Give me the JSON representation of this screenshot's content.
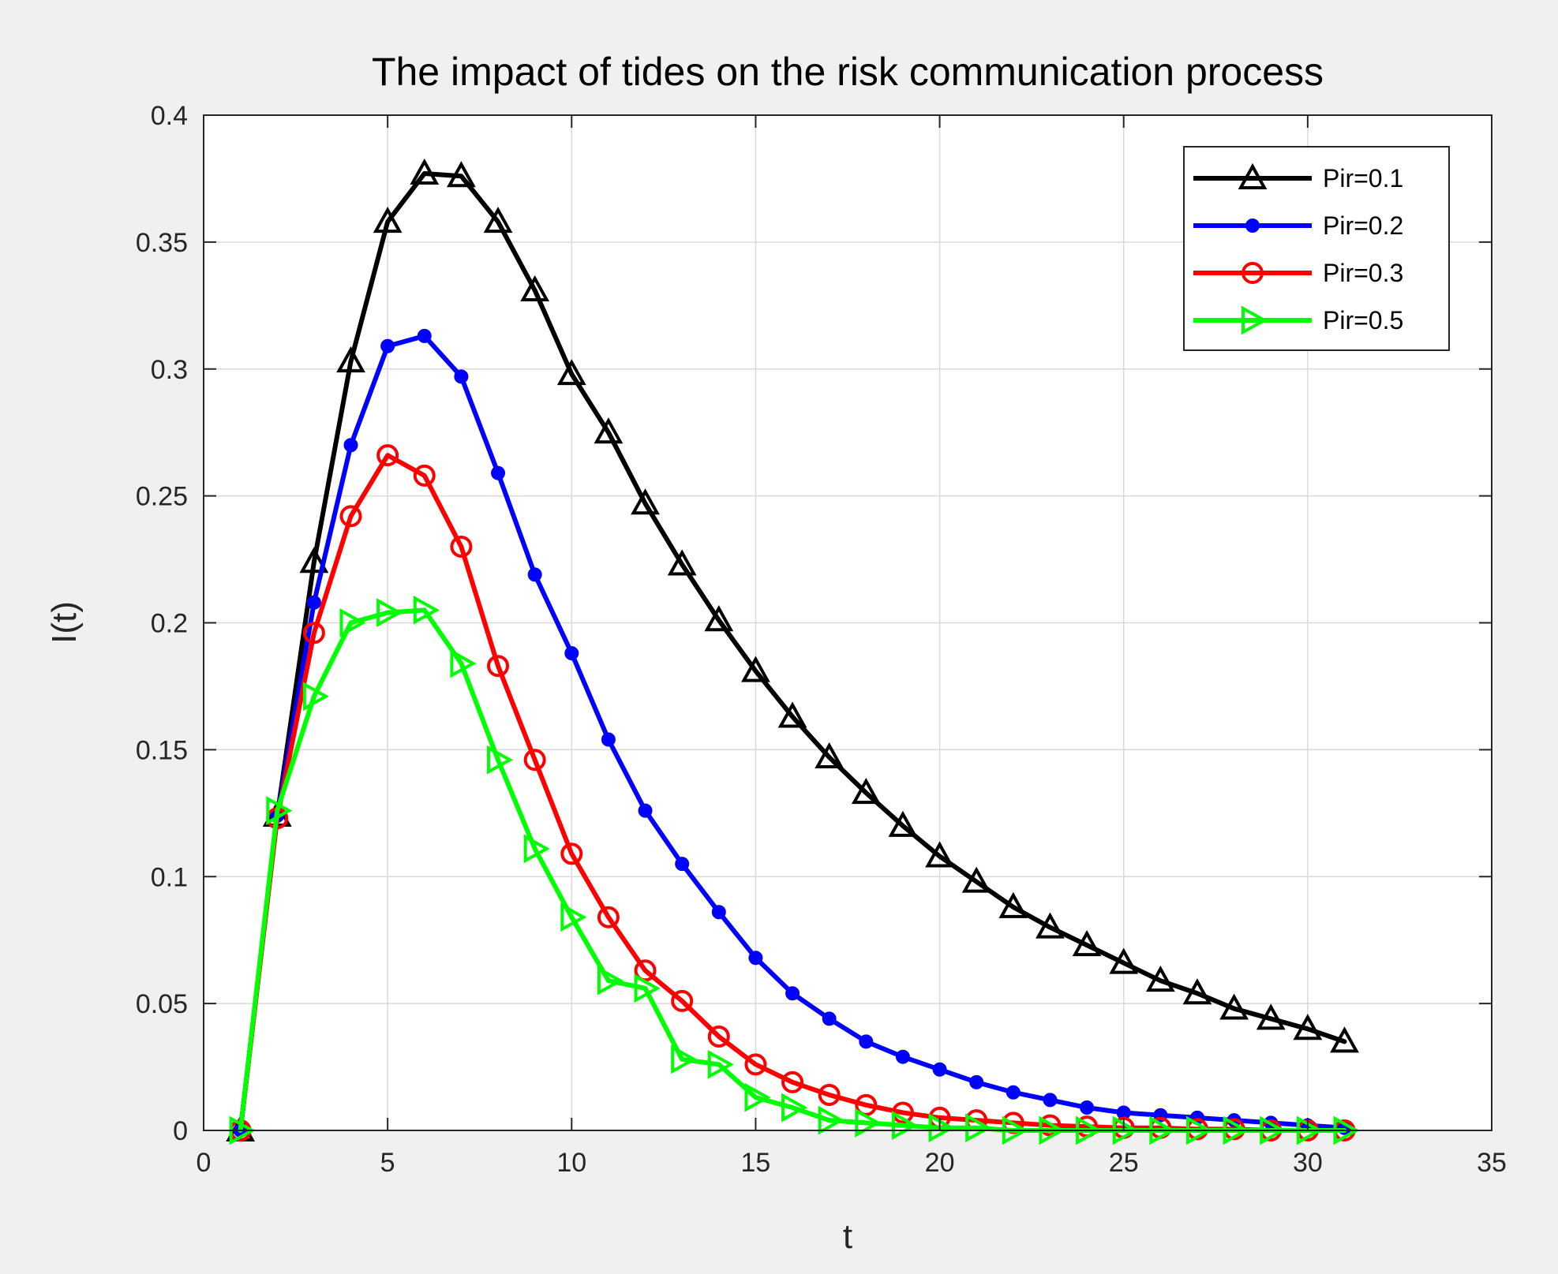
{
  "chart_data": {
    "type": "line",
    "title": "The impact of tides on the risk communication process",
    "xlabel": "t",
    "ylabel": "I(t)",
    "xlim": [
      0,
      35
    ],
    "ylim": [
      0,
      0.4
    ],
    "xticks": [
      0,
      5,
      10,
      15,
      20,
      25,
      30,
      35
    ],
    "yticks": [
      0,
      0.05,
      0.1,
      0.15,
      0.2,
      0.25,
      0.3,
      0.35,
      0.4
    ],
    "xtick_labels": [
      "0",
      "5",
      "10",
      "15",
      "20",
      "25",
      "30",
      "35"
    ],
    "ytick_labels": [
      "0",
      "0.05",
      "0.1",
      "0.15",
      "0.2",
      "0.25",
      "0.3",
      "0.35",
      "0.4"
    ],
    "grid": true,
    "legend_position": "top-right",
    "x": [
      1,
      2,
      3,
      4,
      5,
      6,
      7,
      8,
      9,
      10,
      11,
      12,
      13,
      14,
      15,
      16,
      17,
      18,
      19,
      20,
      21,
      22,
      23,
      24,
      25,
      26,
      27,
      28,
      29,
      30,
      31
    ],
    "series": [
      {
        "name": "Pir=0.1",
        "color": "#000000",
        "marker": "triangle-up",
        "values": [
          0.0,
          0.124,
          0.224,
          0.303,
          0.358,
          0.377,
          0.376,
          0.358,
          0.331,
          0.298,
          0.275,
          0.247,
          0.223,
          0.201,
          0.181,
          0.163,
          0.147,
          0.133,
          0.12,
          0.108,
          0.098,
          0.088,
          0.08,
          0.073,
          0.066,
          0.059,
          0.054,
          0.048,
          0.044,
          0.04,
          0.035
        ]
      },
      {
        "name": "Pir=0.2",
        "color": "#0000ff",
        "marker": "filled-circle",
        "values": [
          0.0,
          0.124,
          0.208,
          0.27,
          0.309,
          0.313,
          0.297,
          0.259,
          0.219,
          0.188,
          0.154,
          0.126,
          0.105,
          0.086,
          0.068,
          0.054,
          0.044,
          0.035,
          0.029,
          0.024,
          0.019,
          0.015,
          0.012,
          0.009,
          0.007,
          0.006,
          0.005,
          0.004,
          0.003,
          0.002,
          0.001
        ]
      },
      {
        "name": "Pir=0.3",
        "color": "#ff0000",
        "marker": "open-circle",
        "values": [
          0.0,
          0.123,
          0.196,
          0.242,
          0.266,
          0.258,
          0.23,
          0.183,
          0.146,
          0.109,
          0.084,
          0.063,
          0.051,
          0.037,
          0.026,
          0.019,
          0.014,
          0.01,
          0.007,
          0.005,
          0.004,
          0.003,
          0.002,
          0.0015,
          0.001,
          0.001,
          0.0005,
          0.0005,
          0.0,
          0.0,
          0.0
        ]
      },
      {
        "name": "Pir=0.5",
        "color": "#00ff00",
        "marker": "triangle-right",
        "values": [
          0.0,
          0.126,
          0.171,
          0.2,
          0.204,
          0.205,
          0.184,
          0.146,
          0.111,
          0.084,
          0.059,
          0.056,
          0.028,
          0.026,
          0.013,
          0.009,
          0.004,
          0.003,
          0.002,
          0.001,
          0.001,
          0.0,
          0.0,
          0.0,
          0.0,
          0.0,
          0.0,
          0.0,
          0.0,
          0.0,
          0.0
        ]
      }
    ]
  }
}
